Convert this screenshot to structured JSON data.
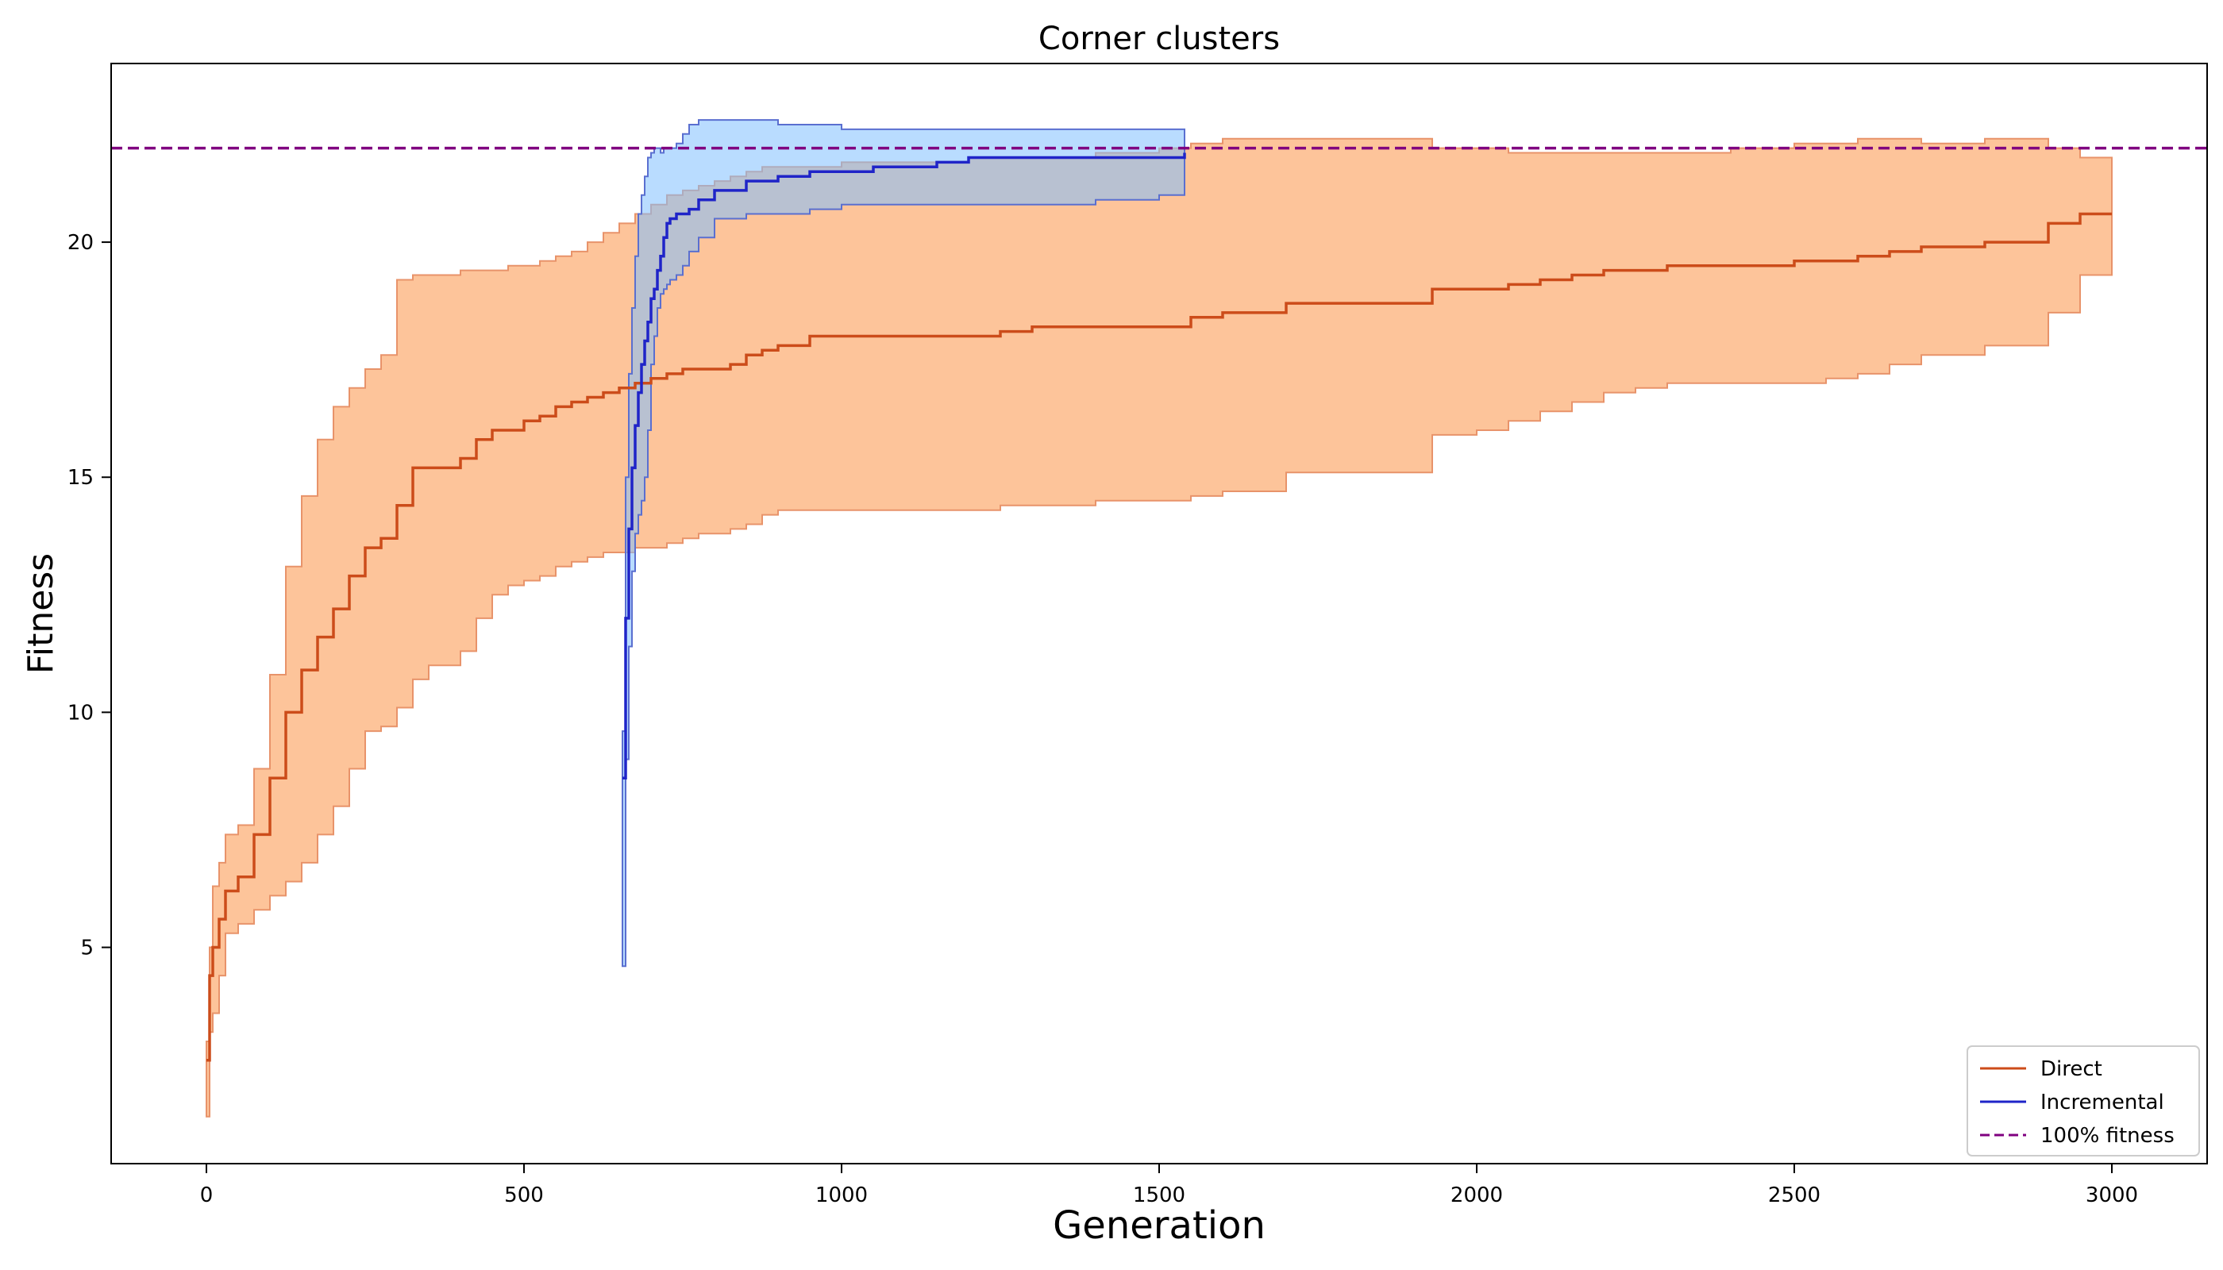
{
  "chart_data": {
    "type": "line",
    "title": "Corner clusters",
    "xlabel": "Generation",
    "ylabel": "Fitness",
    "xlim": [
      -150,
      3150
    ],
    "ylim": [
      0.4,
      23.8
    ],
    "xticks": [
      0,
      500,
      1000,
      1500,
      2000,
      2500,
      3000
    ],
    "xtick_labels": [
      "0",
      "500",
      "1000",
      "1500",
      "2000",
      "2500",
      "3000"
    ],
    "yticks": [
      5,
      10,
      15,
      20
    ],
    "ytick_labels": [
      "5",
      "10",
      "15",
      "20"
    ],
    "grid": false,
    "legend_position": "bottom-right",
    "reference_line": {
      "name": "100% fitness",
      "y": 22,
      "color": "#800080",
      "style": "dashed"
    },
    "series": [
      {
        "name": "Direct",
        "color": "#cc4c1a",
        "fill_color": "#fdc49a",
        "fill_edge_color": "#e8936a",
        "x": [
          0,
          5,
          10,
          20,
          30,
          50,
          75,
          100,
          125,
          150,
          175,
          200,
          225,
          250,
          275,
          300,
          325,
          350,
          400,
          425,
          450,
          475,
          500,
          525,
          550,
          575,
          600,
          625,
          650,
          675,
          700,
          725,
          750,
          775,
          800,
          825,
          850,
          875,
          900,
          950,
          1000,
          1100,
          1200,
          1250,
          1300,
          1400,
          1500,
          1550,
          1600,
          1650,
          1700,
          1800,
          1900,
          1930,
          2000,
          2050,
          2100,
          2150,
          2200,
          2250,
          2300,
          2400,
          2450,
          2500,
          2550,
          2600,
          2650,
          2700,
          2800,
          2850,
          2900,
          2950,
          3000
        ],
        "mean": [
          2.6,
          4.4,
          5.0,
          5.6,
          6.2,
          6.5,
          7.4,
          8.6,
          10.0,
          10.9,
          11.6,
          12.2,
          12.9,
          13.5,
          13.7,
          14.4,
          15.2,
          15.2,
          15.4,
          15.8,
          16.0,
          16.0,
          16.2,
          16.3,
          16.5,
          16.6,
          16.7,
          16.8,
          16.9,
          17.0,
          17.1,
          17.2,
          17.3,
          17.3,
          17.3,
          17.4,
          17.6,
          17.7,
          17.8,
          18.0,
          18.0,
          18.0,
          18.0,
          18.1,
          18.2,
          18.2,
          18.2,
          18.4,
          18.5,
          18.5,
          18.7,
          18.7,
          18.7,
          19.0,
          19.0,
          19.1,
          19.2,
          19.3,
          19.4,
          19.4,
          19.5,
          19.5,
          19.5,
          19.6,
          19.6,
          19.7,
          19.8,
          19.9,
          20.0,
          20.0,
          20.4,
          20.6,
          20.6
        ],
        "lower": [
          1.4,
          3.2,
          3.6,
          4.4,
          5.3,
          5.5,
          5.8,
          6.1,
          6.4,
          6.8,
          7.4,
          8.0,
          8.8,
          9.6,
          9.7,
          10.1,
          10.7,
          11.0,
          11.3,
          12.0,
          12.5,
          12.7,
          12.8,
          12.9,
          13.1,
          13.2,
          13.3,
          13.4,
          13.4,
          13.5,
          13.5,
          13.6,
          13.7,
          13.8,
          13.8,
          13.9,
          14.0,
          14.2,
          14.3,
          14.3,
          14.3,
          14.3,
          14.3,
          14.4,
          14.4,
          14.5,
          14.5,
          14.6,
          14.7,
          14.7,
          15.1,
          15.1,
          15.1,
          15.9,
          16.0,
          16.2,
          16.4,
          16.6,
          16.8,
          16.9,
          17.0,
          17.0,
          17.0,
          17.0,
          17.1,
          17.2,
          17.4,
          17.6,
          17.8,
          17.8,
          18.5,
          19.3,
          19.3
        ],
        "upper": [
          3.0,
          5.0,
          6.3,
          6.8,
          7.4,
          7.6,
          8.8,
          10.8,
          13.1,
          14.6,
          15.8,
          16.5,
          16.9,
          17.3,
          17.6,
          19.2,
          19.3,
          19.3,
          19.4,
          19.4,
          19.4,
          19.5,
          19.5,
          19.6,
          19.7,
          19.8,
          20.0,
          20.2,
          20.4,
          20.6,
          20.8,
          21.0,
          21.1,
          21.2,
          21.3,
          21.4,
          21.5,
          21.6,
          21.6,
          21.6,
          21.7,
          21.7,
          21.8,
          21.8,
          21.8,
          21.9,
          22.0,
          22.1,
          22.2,
          22.2,
          22.2,
          22.2,
          22.2,
          22.0,
          22.0,
          21.9,
          21.9,
          21.9,
          21.9,
          21.9,
          21.9,
          22.0,
          22.0,
          22.1,
          22.1,
          22.2,
          22.2,
          22.1,
          22.2,
          22.2,
          22.0,
          21.8,
          21.8
        ]
      },
      {
        "name": "Incremental",
        "color": "#1f24c8",
        "fill_color": "#7fbfff",
        "overlap_color": "#85a9c6",
        "fill_edge_color": "#5a6fd0",
        "x": [
          655,
          660,
          665,
          670,
          675,
          680,
          685,
          690,
          695,
          700,
          705,
          710,
          715,
          720,
          725,
          730,
          740,
          750,
          760,
          775,
          800,
          850,
          900,
          950,
          1000,
          1050,
          1100,
          1150,
          1200,
          1300,
          1400,
          1500,
          1540
        ],
        "mean": [
          8.6,
          12.0,
          13.9,
          15.2,
          16.1,
          16.8,
          17.4,
          17.9,
          18.3,
          18.8,
          19.0,
          19.4,
          19.7,
          20.1,
          20.4,
          20.5,
          20.6,
          20.6,
          20.7,
          20.9,
          21.1,
          21.3,
          21.4,
          21.5,
          21.5,
          21.6,
          21.6,
          21.7,
          21.8,
          21.8,
          21.8,
          21.8,
          21.9
        ],
        "lower": [
          4.6,
          9.0,
          11.4,
          13.0,
          13.8,
          14.2,
          14.5,
          15.0,
          16.0,
          17.4,
          18.0,
          18.6,
          18.9,
          19.0,
          19.1,
          19.2,
          19.3,
          19.5,
          19.8,
          20.1,
          20.5,
          20.6,
          20.6,
          20.7,
          20.8,
          20.8,
          20.8,
          20.8,
          20.8,
          20.8,
          20.9,
          21.0,
          21.5
        ],
        "upper": [
          9.6,
          15.0,
          17.2,
          18.6,
          19.7,
          20.6,
          21.0,
          21.4,
          21.8,
          21.9,
          22.0,
          22.0,
          21.9,
          22.0,
          22.0,
          22.0,
          22.1,
          22.3,
          22.5,
          22.6,
          22.6,
          22.6,
          22.5,
          22.5,
          22.4,
          22.4,
          22.4,
          22.4,
          22.4,
          22.4,
          22.4,
          22.4,
          22.2
        ]
      }
    ]
  }
}
